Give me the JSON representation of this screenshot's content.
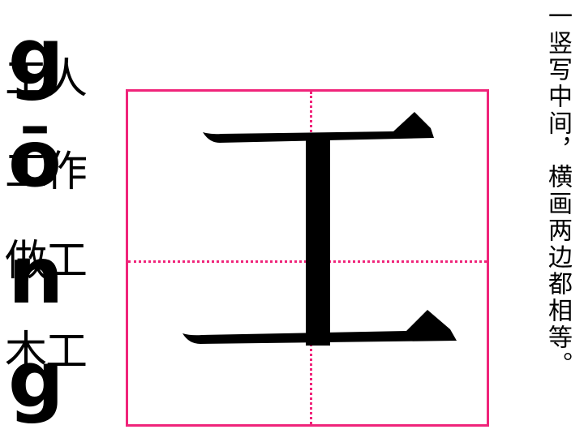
{
  "vocab": [
    "工人",
    "工作",
    "做工",
    "木工"
  ],
  "pinyin": [
    "g",
    "ō",
    "n",
    "g"
  ],
  "character": "工",
  "rule": "一竖写中间，横画两边都相等。",
  "colors": {
    "grid": "#f0247a",
    "ink": "#000000"
  }
}
